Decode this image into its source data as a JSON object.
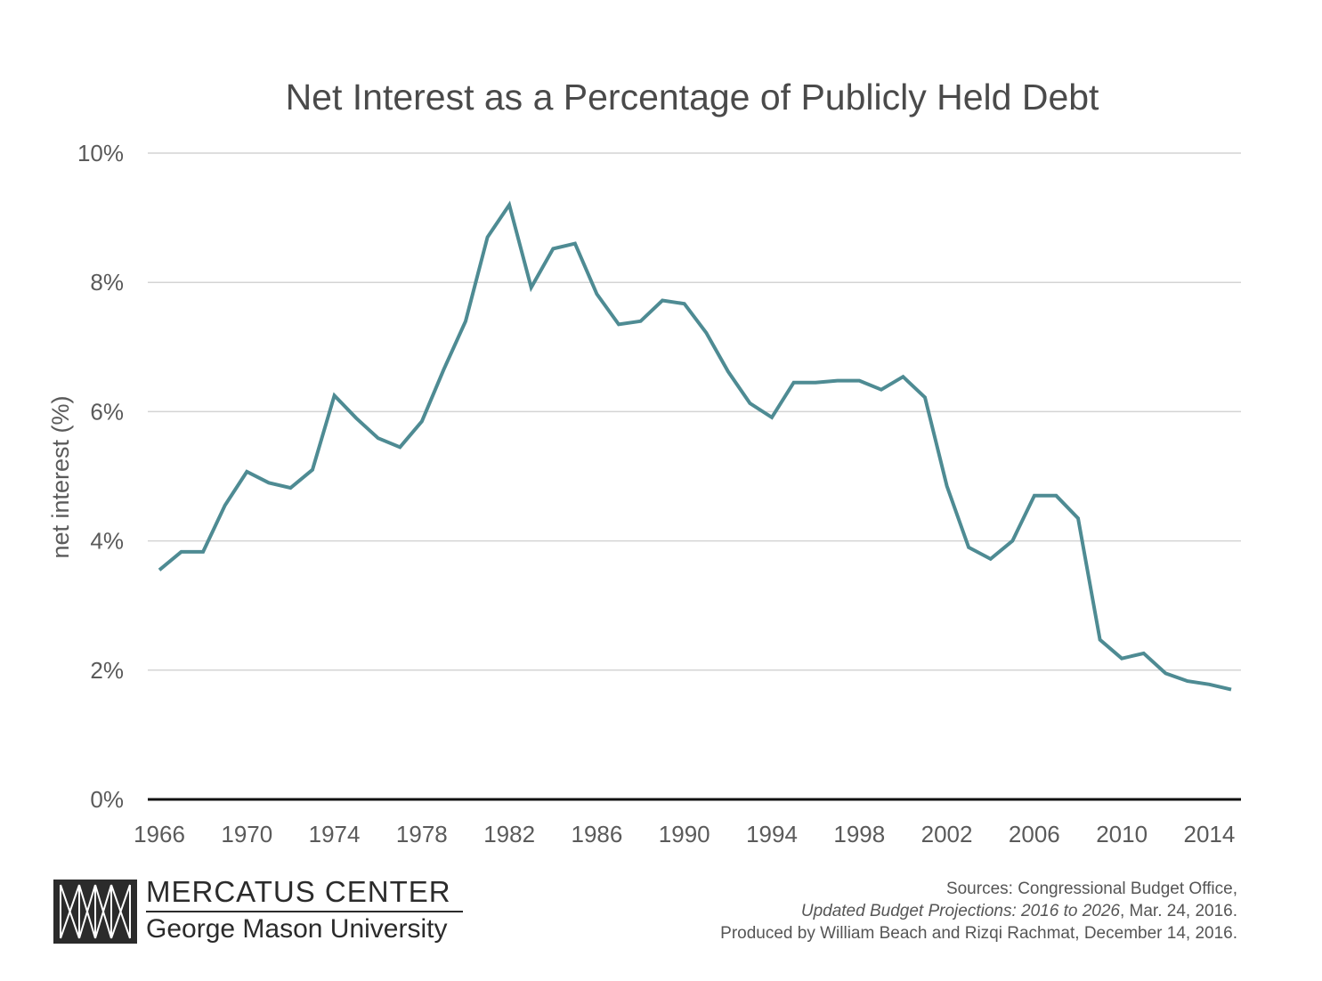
{
  "chart_data": {
    "type": "line",
    "title": "Net Interest as a Percentage of Publicly Held Debt",
    "xlabel": "",
    "ylabel": "net interest (%)",
    "x_ticks": [
      "1966",
      "1970",
      "1974",
      "1978",
      "1982",
      "1986",
      "1990",
      "1994",
      "1998",
      "2002",
      "2006",
      "2010",
      "2014"
    ],
    "y_ticks": [
      "0%",
      "2%",
      "4%",
      "6%",
      "8%",
      "10%"
    ],
    "xlim": [
      1966,
      2015
    ],
    "ylim": [
      0,
      10
    ],
    "grid": true,
    "line_color": "#4e8b93",
    "series": [
      {
        "x": [
          1966,
          1967,
          1968,
          1969,
          1970,
          1971,
          1972,
          1973,
          1974,
          1975,
          1976,
          1977,
          1978,
          1979,
          1980,
          1981,
          1982,
          1983,
          1984,
          1985,
          1986,
          1987,
          1988,
          1989,
          1990,
          1991,
          1992,
          1993,
          1994,
          1995,
          1996,
          1997,
          1998,
          1999,
          2000,
          2001,
          2002,
          2003,
          2004,
          2005,
          2006,
          2007,
          2008,
          2009,
          2010,
          2011,
          2012,
          2013,
          2014,
          2015
        ],
        "values": [
          3.55,
          3.83,
          3.83,
          4.55,
          5.07,
          4.9,
          4.82,
          5.1,
          6.25,
          5.9,
          5.59,
          5.45,
          5.85,
          6.65,
          7.4,
          8.7,
          9.2,
          7.92,
          8.52,
          8.6,
          7.82,
          7.35,
          7.4,
          7.72,
          7.67,
          7.22,
          6.62,
          6.13,
          5.91,
          6.45,
          6.45,
          6.48,
          6.48,
          6.34,
          6.54,
          6.22,
          4.85,
          3.9,
          3.72,
          4.0,
          4.7,
          4.7,
          4.35,
          2.47,
          2.18,
          2.26,
          1.95,
          1.83,
          1.78,
          1.7
        ]
      }
    ]
  },
  "logo": {
    "name": "MERCATUS CENTER",
    "subtitle": "George Mason University"
  },
  "source": {
    "line1": "Sources: Congressional Budget Office,",
    "line2_italic": "Updated Budget Projections: 2016 to 2026",
    "line2_rest": ", Mar. 24, 2016.",
    "line3": "Produced by William Beach and Rizqi Rachmat, December 14, 2016."
  }
}
